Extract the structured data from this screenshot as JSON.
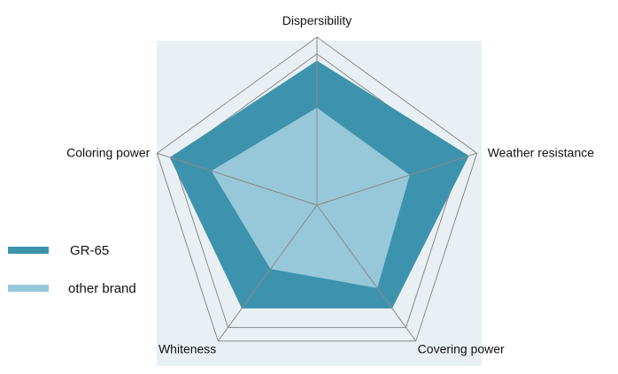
{
  "chart_data": {
    "type": "radar",
    "title": "",
    "axes": [
      "Dispersibility",
      "Weather resistance",
      "Covering power",
      "Whiteness",
      "Coloring power"
    ],
    "range": [
      0,
      1
    ],
    "series": [
      {
        "name": "GR-65",
        "values": [
          0.86,
          0.95,
          0.76,
          0.76,
          0.92
        ],
        "color": "#3d93ad"
      },
      {
        "name": "other brand",
        "values": [
          0.58,
          0.58,
          0.61,
          0.47,
          0.66
        ],
        "color": "#97c8d9"
      }
    ],
    "legend_position": "left",
    "plot_background": "#e9f0f3",
    "grid": true
  }
}
